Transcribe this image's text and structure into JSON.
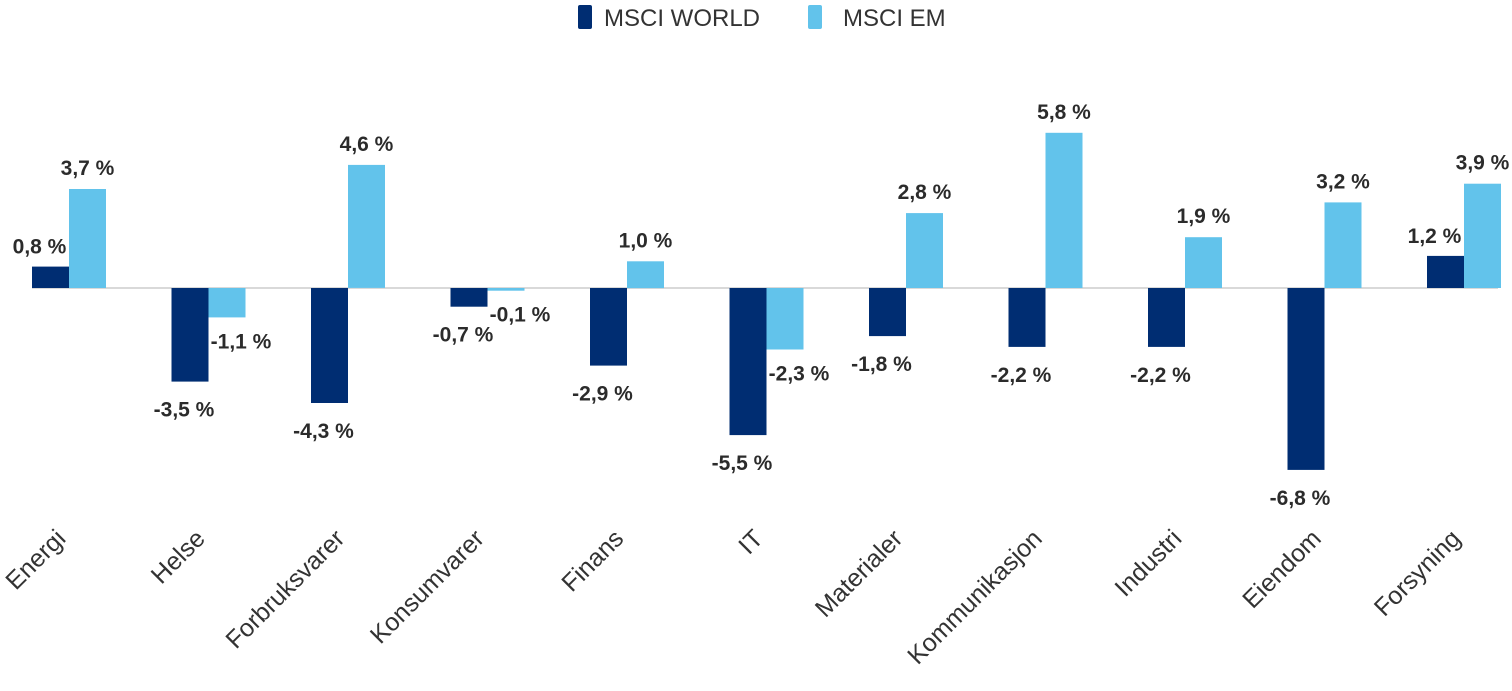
{
  "chart_data": {
    "type": "bar",
    "categories": [
      "Energi",
      "Helse",
      "Forbruksvarer",
      "Konsumvarer",
      "Finans",
      "IT",
      "Materialer",
      "Kommunikasjon",
      "Industri",
      "Eiendom",
      "Forsyning"
    ],
    "series": [
      {
        "name": "MSCI WORLD",
        "color": "#002d72",
        "values": [
          0.8,
          -3.5,
          -4.3,
          -0.7,
          -2.9,
          -5.5,
          -1.8,
          -2.2,
          -2.2,
          -6.8,
          1.2
        ],
        "labels": [
          "0,8 %",
          "-3,5 %",
          "-4,3 %",
          "-0,7 %",
          "-2,9 %",
          "-5,5 %",
          "-1,8 %",
          "-2,2 %",
          "-2,2 %",
          "-6,8 %",
          "1,2 %"
        ]
      },
      {
        "name": "MSCI EM",
        "color": "#62c3eb",
        "values": [
          3.7,
          -1.1,
          4.6,
          -0.1,
          1.0,
          -2.3,
          2.8,
          5.8,
          1.9,
          3.2,
          3.9
        ],
        "labels": [
          "3,7 %",
          "-1,1 %",
          "4,6 %",
          "-0,1 %",
          "1,0 %",
          "-2,3 %",
          "2,8 %",
          "5,8 %",
          "1,9 %",
          "3,2 %",
          "3,9 %"
        ]
      }
    ],
    "legend": "top-center",
    "grid": false,
    "zero_line_color": "#d9d9d9"
  }
}
